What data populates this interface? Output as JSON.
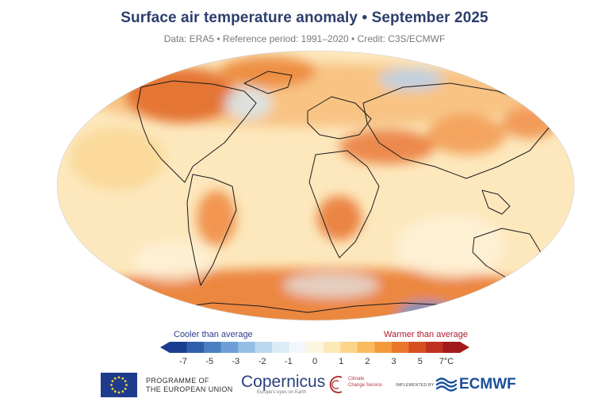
{
  "title": "Surface air temperature anomaly • September 2025",
  "subtitle": "Data: ERA5 • Reference period: 1991–2020 • Credit: C3S/ECMWF",
  "legend": {
    "cooler_label": "Cooler than average",
    "warmer_label": "Warmer than average",
    "ticks": [
      "-7",
      "-5",
      "-3",
      "-2",
      "-1",
      "0",
      "1",
      "2",
      "3",
      "5",
      "7°C"
    ],
    "colors": [
      "#1b3d8f",
      "#2f5fab",
      "#4a7fc2",
      "#6d9fd6",
      "#94bee5",
      "#bcd8ef",
      "#dcecf7",
      "#f3f7fb",
      "#fdf6e0",
      "#fde9b8",
      "#fbd58a",
      "#f8bb60",
      "#f39a3b",
      "#e9762a",
      "#d6501f",
      "#c03020",
      "#a31a1a"
    ]
  },
  "logos": {
    "eu_line1": "PROGRAMME OF",
    "eu_line2": "THE EUROPEAN UNION",
    "copernicus": "Copernicus",
    "copernicus_tagline": "Europe's eyes on Earth",
    "c3s_line1": "Climate",
    "c3s_line2": "Change Service",
    "implemented_by": "IMPLEMENTED BY",
    "ecmwf": "ECMWF"
  }
}
